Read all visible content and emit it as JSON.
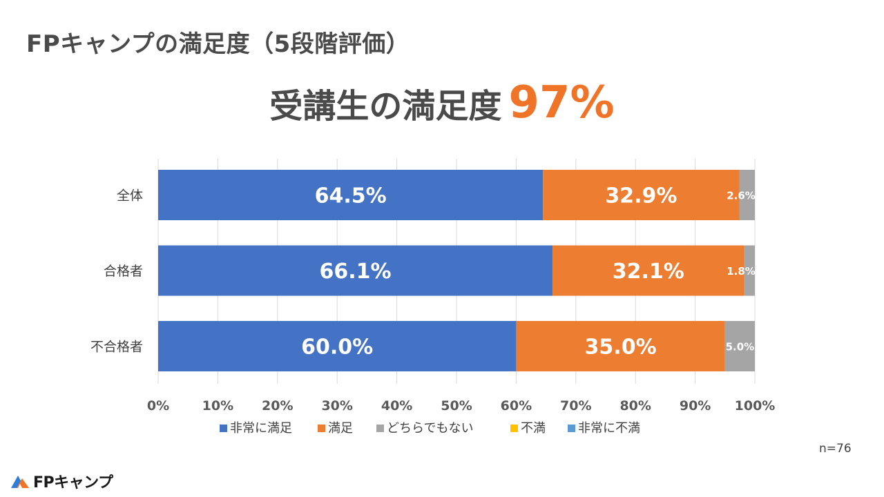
{
  "page": {
    "title": "FPキャンプの満足度（5段階評価）",
    "headline": "受講生の満足度",
    "headline_value": "97%",
    "sample_size": "n=76",
    "logo_text": "FPキャンプ"
  },
  "colors": {
    "title": "#4a4a4a",
    "accent": "#f07428",
    "logo_blue": "#2f7fd8"
  },
  "chart_data": {
    "type": "bar",
    "orientation": "horizontal",
    "stacked": true,
    "categories": [
      "全体",
      "合格者",
      "不合格者"
    ],
    "series": [
      {
        "name": "非常に満足",
        "color": "#4472c4",
        "values": [
          64.5,
          66.1,
          60.0
        ],
        "labels": [
          "64.5%",
          "66.1%",
          "60.0%"
        ]
      },
      {
        "name": "満足",
        "color": "#ed7d31",
        "values": [
          32.9,
          32.1,
          35.0
        ],
        "labels": [
          "32.9%",
          "32.1%",
          "35.0%"
        ]
      },
      {
        "name": "どちらでもない",
        "color": "#a5a5a5",
        "values": [
          2.6,
          1.8,
          5.0
        ],
        "labels": [
          "2.6%",
          "1.8%",
          "5.0%"
        ]
      },
      {
        "name": "不満",
        "color": "#ffc000",
        "values": [
          0,
          0,
          0
        ],
        "labels": [
          "",
          "",
          ""
        ]
      },
      {
        "name": "非常に不満",
        "color": "#5b9bd5",
        "values": [
          0,
          0,
          0
        ],
        "labels": [
          "",
          "",
          ""
        ]
      }
    ],
    "xlim": [
      0,
      100
    ],
    "x_ticks": [
      "0%",
      "10%",
      "20%",
      "30%",
      "40%",
      "50%",
      "60%",
      "70%",
      "80%",
      "90%",
      "100%"
    ],
    "grid": true,
    "legend_position": "bottom"
  }
}
